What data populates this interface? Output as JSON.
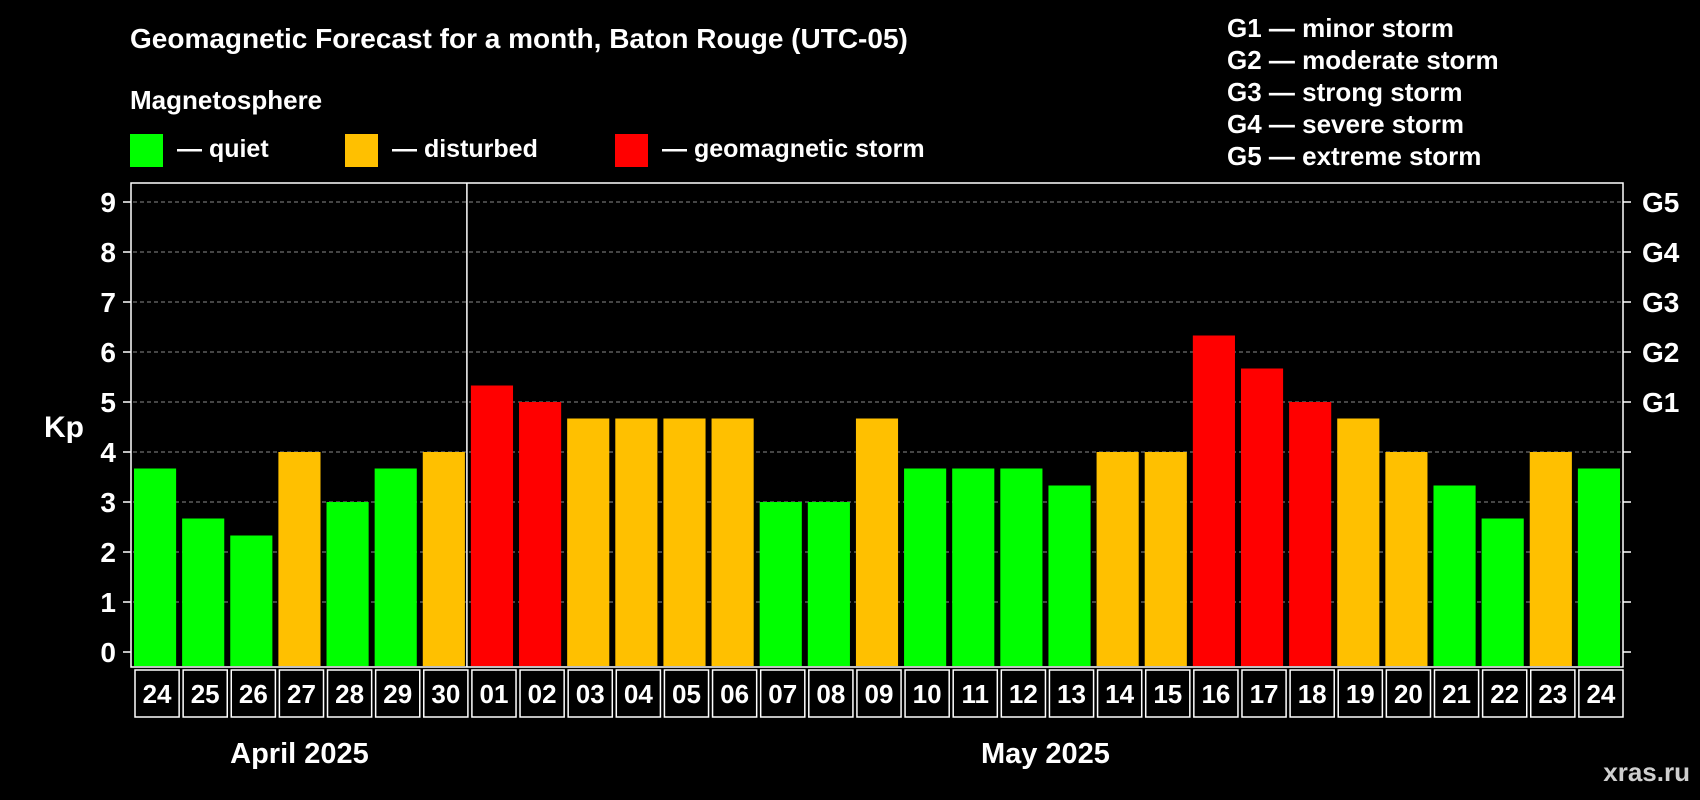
{
  "chart_data": {
    "type": "bar",
    "title": "Geomagnetic Forecast for a month, Baton Rouge (UTC-05)",
    "legend_title": "Magnetosphere",
    "legend": [
      {
        "label": "— quiet",
        "color": "#00ff00"
      },
      {
        "label": "— disturbed",
        "color": "#ffc000"
      },
      {
        "label": "— geomagnetic storm",
        "color": "#ff0000"
      }
    ],
    "storm_legend": [
      "G1 — minor storm",
      "G2 — moderate storm",
      "G3 — strong storm",
      "G4 — severe storm",
      "G5 — extreme storm"
    ],
    "ylabel": "Kp",
    "ylim": [
      0,
      9
    ],
    "yticks": [
      "0",
      "1",
      "2",
      "3",
      "4",
      "5",
      "6",
      "7",
      "8",
      "9"
    ],
    "right_labels": [
      {
        "label": "G1",
        "kp": 5
      },
      {
        "label": "G2",
        "kp": 6
      },
      {
        "label": "G3",
        "kp": 7
      },
      {
        "label": "G4",
        "kp": 8
      },
      {
        "label": "G5",
        "kp": 9
      }
    ],
    "categories": [
      "24",
      "25",
      "26",
      "27",
      "28",
      "29",
      "30",
      "01",
      "02",
      "03",
      "04",
      "05",
      "06",
      "07",
      "08",
      "09",
      "10",
      "11",
      "12",
      "13",
      "14",
      "15",
      "16",
      "17",
      "18",
      "19",
      "20",
      "21",
      "22",
      "23",
      "24"
    ],
    "values": [
      3.67,
      2.67,
      2.33,
      4.0,
      3.0,
      3.67,
      4.0,
      5.33,
      5.0,
      4.67,
      4.67,
      4.67,
      4.67,
      3.0,
      3.0,
      4.67,
      3.67,
      3.67,
      3.67,
      3.33,
      4.0,
      4.0,
      6.33,
      5.67,
      5.0,
      4.67,
      4.0,
      3.33,
      2.67,
      4.0,
      3.67
    ],
    "levels": [
      "quiet",
      "quiet",
      "quiet",
      "disturbed",
      "quiet",
      "quiet",
      "disturbed",
      "storm",
      "storm",
      "disturbed",
      "disturbed",
      "disturbed",
      "disturbed",
      "quiet",
      "quiet",
      "disturbed",
      "quiet",
      "quiet",
      "quiet",
      "quiet",
      "disturbed",
      "disturbed",
      "storm",
      "storm",
      "storm",
      "disturbed",
      "disturbed",
      "quiet",
      "quiet",
      "disturbed",
      "quiet"
    ],
    "level_colors": {
      "quiet": "#00ff00",
      "disturbed": "#ffc000",
      "storm": "#ff0000"
    },
    "months": [
      {
        "label": "April 2025",
        "start": 0,
        "end": 6
      },
      {
        "label": "May 2025",
        "start": 7,
        "end": 30
      }
    ],
    "month_separator_after": 6,
    "watermark": "xras.ru"
  }
}
